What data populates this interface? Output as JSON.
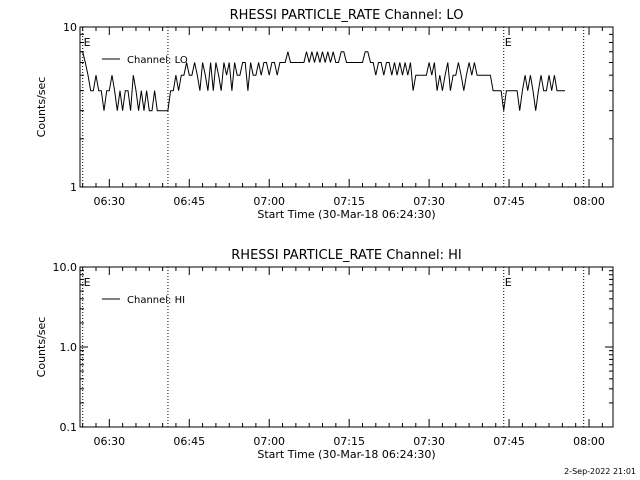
{
  "footer_timestamp": "2-Sep-2022 21:01",
  "chart_data": [
    {
      "type": "line",
      "title": "RHESSI PARTICLE_RATE Channel: LO",
      "xlabel": "Start Time (30-Mar-18 06:24:30)",
      "ylabel": "Counts/sec",
      "y_scale": "log",
      "ylim": [
        1,
        10
      ],
      "xlim_minutes": [
        0,
        100
      ],
      "y_ticks": [
        {
          "value": 1,
          "label": "1"
        },
        {
          "value": 10,
          "label": "10"
        }
      ],
      "x_ticks": [
        {
          "minute": 5.5,
          "label": "06:30"
        },
        {
          "minute": 20.5,
          "label": "06:45"
        },
        {
          "minute": 35.5,
          "label": "07:00"
        },
        {
          "minute": 50.5,
          "label": "07:15"
        },
        {
          "minute": 65.5,
          "label": "07:30"
        },
        {
          "minute": 80.5,
          "label": "07:45"
        },
        {
          "minute": 95.5,
          "label": "08:00"
        }
      ],
      "legend": {
        "placement": "top-left",
        "entries": [
          "Channel: LO"
        ]
      },
      "markers": [
        {
          "minute": 0.5,
          "label": "E"
        },
        {
          "minute": 16.5,
          "label": ""
        },
        {
          "minute": 79.5,
          "label": "E"
        },
        {
          "minute": 94.5,
          "label": ""
        }
      ],
      "series": [
        {
          "name": "Channel: LO",
          "start_minute": 0,
          "step_minutes": 0.5,
          "values": [
            7,
            7,
            6,
            5,
            4,
            4,
            5,
            4,
            4,
            3,
            4,
            4,
            5,
            4,
            3,
            4,
            3,
            4,
            4,
            3,
            5,
            4,
            3,
            4,
            3,
            4,
            3,
            3,
            4,
            3,
            3,
            3,
            3,
            3,
            4,
            4,
            5,
            4,
            5,
            5,
            6,
            5,
            5,
            6,
            5,
            4,
            6,
            5,
            4,
            6,
            4,
            6,
            5,
            4,
            6,
            5,
            6,
            4,
            6,
            5,
            5,
            6,
            6,
            4,
            6,
            5,
            5,
            6,
            5,
            6,
            6,
            5,
            6,
            6,
            5,
            6,
            6,
            6,
            7,
            6,
            6,
            6,
            6,
            6,
            6,
            7,
            6,
            7,
            6,
            7,
            6,
            7,
            6,
            7,
            6,
            7,
            6,
            6,
            7,
            7,
            6,
            6,
            6,
            6,
            6,
            6,
            6,
            7,
            7,
            6,
            6,
            5,
            6,
            6,
            5,
            6,
            6,
            5,
            6,
            5,
            6,
            5,
            6,
            5,
            6,
            4,
            5,
            5,
            5,
            5,
            5,
            6,
            5,
            6,
            4,
            5,
            4,
            5,
            6,
            4,
            5,
            5,
            6,
            5,
            4,
            5,
            6,
            5,
            6,
            5,
            5,
            5,
            5,
            5,
            5,
            4,
            4,
            4,
            4,
            3,
            4,
            4,
            4,
            4,
            4,
            3,
            4,
            5,
            4,
            5,
            4,
            3,
            4,
            5,
            4,
            4,
            5,
            4,
            5,
            4,
            4,
            4,
            4
          ]
        }
      ]
    },
    {
      "type": "line",
      "title": "RHESSI PARTICLE_RATE Channel: HI",
      "xlabel": "Start Time (30-Mar-18 06:24:30)",
      "ylabel": "Counts/sec",
      "y_scale": "log",
      "ylim": [
        0.1,
        10
      ],
      "xlim_minutes": [
        0,
        100
      ],
      "y_ticks": [
        {
          "value": 0.1,
          "label": "0.1"
        },
        {
          "value": 1,
          "label": "1.0"
        },
        {
          "value": 10,
          "label": "10.0"
        }
      ],
      "x_ticks": [
        {
          "minute": 5.5,
          "label": "06:30"
        },
        {
          "minute": 20.5,
          "label": "06:45"
        },
        {
          "minute": 35.5,
          "label": "07:00"
        },
        {
          "minute": 50.5,
          "label": "07:15"
        },
        {
          "minute": 65.5,
          "label": "07:30"
        },
        {
          "minute": 80.5,
          "label": "07:45"
        },
        {
          "minute": 95.5,
          "label": "08:00"
        }
      ],
      "legend": {
        "placement": "top-left",
        "entries": [
          "Channel: HI"
        ]
      },
      "markers": [
        {
          "minute": 0.5,
          "label": "E"
        },
        {
          "minute": 16.5,
          "label": ""
        },
        {
          "minute": 79.5,
          "label": "E"
        },
        {
          "minute": 94.5,
          "label": ""
        }
      ],
      "series": [
        {
          "name": "Channel: HI",
          "start_minute": 0,
          "step_minutes": 0.5,
          "values": []
        }
      ]
    }
  ]
}
